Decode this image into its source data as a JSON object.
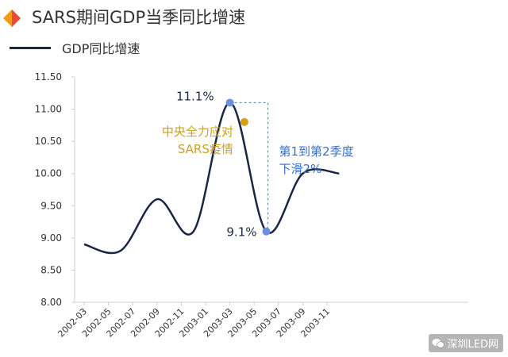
{
  "header": {
    "title": "SARS期间GDP当季同比增速",
    "logo_icon": "diamond-logo-icon",
    "logo_colors": [
      "#f39c12",
      "#e74c3c"
    ]
  },
  "watermark": {
    "icon": "wechat-icon",
    "text": "深圳LED网"
  },
  "chart_data": {
    "type": "line",
    "title": "SARS期间GDP当季同比增速",
    "xlabel": "",
    "ylabel": "",
    "ylim": [
      8.0,
      11.5
    ],
    "yticks": [
      "8.00",
      "8.50",
      "9.00",
      "9.50",
      "10.00",
      "10.50",
      "11.00",
      "11.50"
    ],
    "xtick_labels": [
      "2002-03",
      "2002-05",
      "2002-07",
      "2002-09",
      "2002-11",
      "2003-01",
      "2003-03",
      "2003-05",
      "2003-07",
      "2003-09",
      "2003-11"
    ],
    "grid": false,
    "legend": "top-left",
    "line_color": "#1b2645",
    "series": [
      {
        "name": "GDP同比增速",
        "points": [
          [
            "2002-03",
            8.9
          ],
          [
            "2002-06",
            8.8
          ],
          [
            "2002-09",
            9.6
          ],
          [
            "2002-12",
            9.1
          ],
          [
            "2003-03",
            11.1
          ],
          [
            "2003-06",
            9.1
          ],
          [
            "2003-09",
            10.0
          ],
          [
            "2003-12",
            10.0
          ]
        ]
      }
    ],
    "annotations": [
      {
        "id": "peak",
        "text": "11.1%",
        "x": "2003-03",
        "y": 11.1,
        "color": "#1b2645",
        "marker_color": "#6d8fe0"
      },
      {
        "id": "trough",
        "text": "9.1%",
        "x": "2003-06",
        "y": 9.1,
        "color": "#1b2645",
        "marker_color": "#6d8fe0"
      },
      {
        "id": "response",
        "lines": [
          "中央全力应对",
          "SARS疫情"
        ],
        "x": "2003-04",
        "y": 10.8,
        "color": "#c9a227",
        "marker_color": "#d4a017"
      },
      {
        "id": "decline",
        "lines": [
          "第1到第2季度",
          "下滑2%"
        ],
        "color": "#3a6fc4"
      }
    ]
  }
}
